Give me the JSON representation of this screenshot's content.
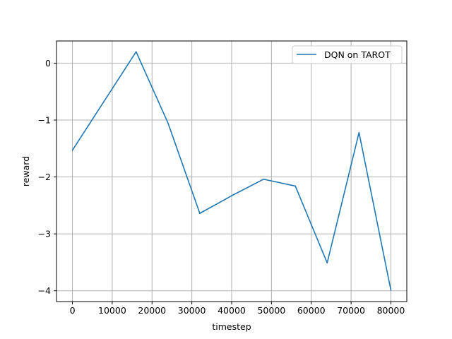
{
  "chart_data": {
    "type": "line",
    "title": "",
    "xlabel": "timestep",
    "ylabel": "reward",
    "xlim": [
      -4000,
      84000
    ],
    "ylim": [
      -4.19,
      0.39
    ],
    "xticks": [
      0,
      10000,
      20000,
      30000,
      40000,
      50000,
      60000,
      70000,
      80000
    ],
    "yticks": [
      0,
      -1,
      -2,
      -3,
      -4
    ],
    "ytick_labels": [
      "0",
      "−1",
      "−2",
      "−3",
      "−4"
    ],
    "grid": true,
    "legend_position": "top-right",
    "series": [
      {
        "name": "DQN on TAROT",
        "color": "#1f77b4",
        "x": [
          0,
          16000,
          24000,
          32000,
          40000,
          48000,
          56000,
          64000,
          72000,
          80000
        ],
        "y": [
          -1.53,
          0.2,
          -1.05,
          -2.64,
          -2.33,
          -2.04,
          -2.16,
          -3.51,
          -1.22,
          -3.99
        ]
      }
    ]
  }
}
